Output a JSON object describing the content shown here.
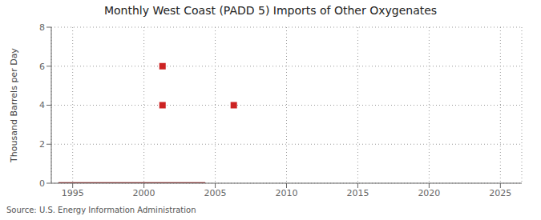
{
  "chart_data": {
    "type": "line",
    "title": "Monthly West Coast (PADD 5) Imports of Other Oxygenates",
    "y_label": "Thousand Barrels per Day",
    "xlim": [
      1993.5,
      2026.5
    ],
    "xticks": [
      1995,
      2000,
      2005,
      2010,
      2015,
      2020,
      2025
    ],
    "ylim": [
      0,
      8
    ],
    "yticks": [
      0,
      2,
      4,
      6,
      8
    ],
    "grid": true,
    "series": [
      {
        "type": "line",
        "color": "#8b1a1a",
        "x": [
          1994.0,
          1994.5,
          1995,
          1996,
          1997,
          1998,
          1999,
          2000,
          2001,
          2002,
          2003,
          2004,
          2004.3
        ],
        "values": [
          0,
          0,
          0,
          0,
          0,
          0,
          0,
          0,
          0,
          0,
          0,
          0,
          0
        ]
      },
      {
        "type": "scatter",
        "color": "#cc2222",
        "marker": "square",
        "x": [
          2001.3,
          2001.3,
          2006.3
        ],
        "values": [
          6.0,
          4.0,
          4.0
        ]
      }
    ],
    "annotations": [
      "Source: U.S. Energy Information Administration"
    ]
  }
}
